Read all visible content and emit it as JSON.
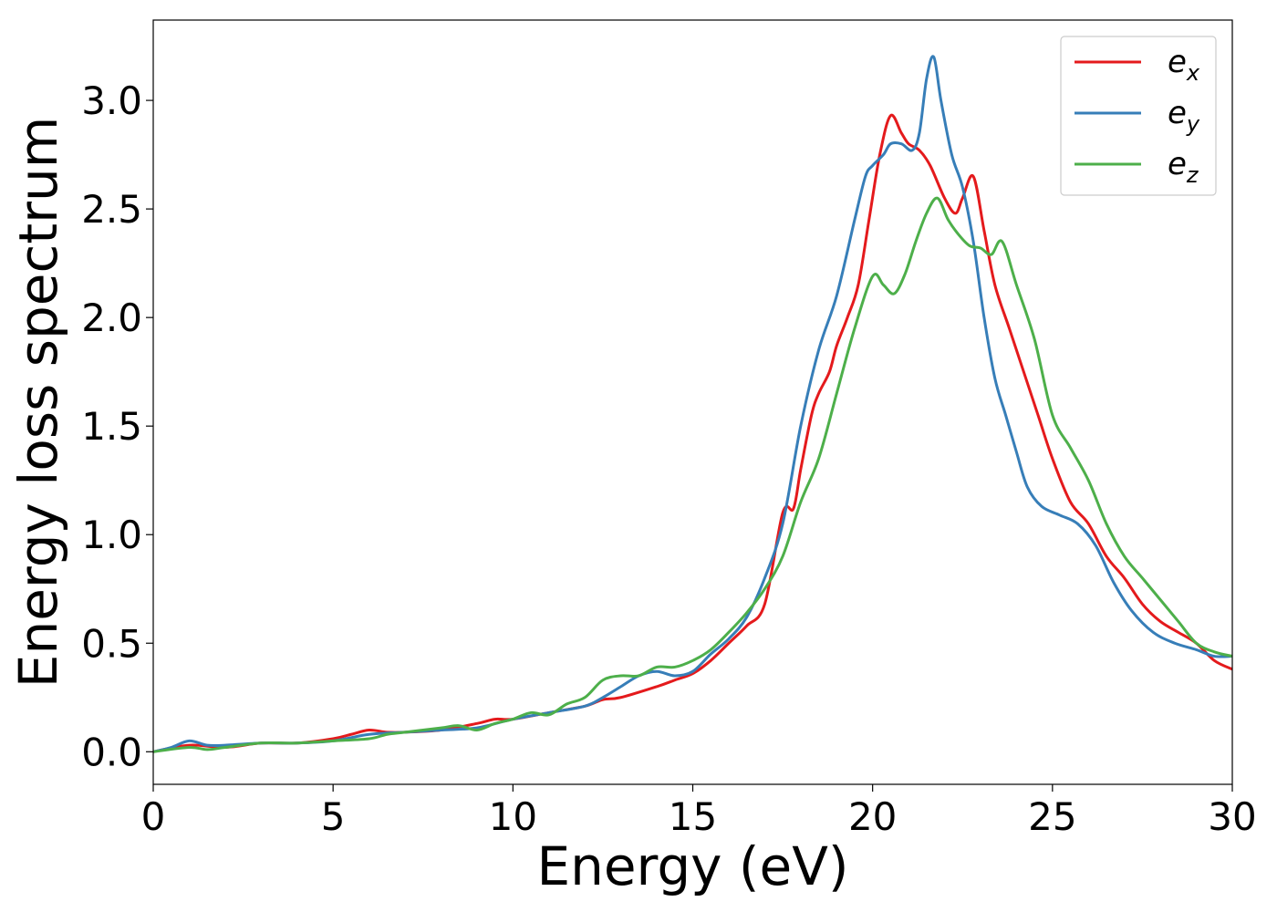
{
  "chart_data": {
    "type": "line",
    "title": "",
    "xlabel": "Energy (eV)",
    "ylabel": "Energy loss spectrum",
    "xlim": [
      0,
      30
    ],
    "ylim": [
      -0.15,
      3.37
    ],
    "xticks": [
      0,
      5,
      10,
      15,
      20,
      25,
      30
    ],
    "xtick_labels": [
      "0",
      "5",
      "10",
      "15",
      "20",
      "25",
      "30"
    ],
    "yticks": [
      0.0,
      0.5,
      1.0,
      1.5,
      2.0,
      2.5,
      3.0
    ],
    "ytick_labels": [
      "0.0",
      "0.5",
      "1.0",
      "1.5",
      "2.0",
      "2.5",
      "3.0"
    ],
    "grid": false,
    "legend_position": "top-right",
    "series": [
      {
        "name": "e",
        "subscript": "x",
        "color": "#e41a1c",
        "x": [
          0,
          1,
          2,
          3,
          4,
          5,
          5.5,
          6,
          6.5,
          7,
          8,
          9,
          9.5,
          10,
          11,
          12,
          12.5,
          13,
          14,
          14.5,
          15,
          15.5,
          16,
          16.5,
          17,
          17.5,
          17.8,
          18,
          18.3,
          18.5,
          18.8,
          19,
          19.3,
          19.6,
          19.9,
          20.2,
          20.5,
          20.8,
          21,
          21.3,
          21.6,
          22,
          22.3,
          22.5,
          22.8,
          23.1,
          23.4,
          23.8,
          24.2,
          24.6,
          25,
          25.5,
          26,
          26.5,
          27,
          27.5,
          28,
          28.5,
          29,
          29.5,
          30
        ],
        "y": [
          0.0,
          0.03,
          0.02,
          0.04,
          0.04,
          0.06,
          0.08,
          0.1,
          0.09,
          0.09,
          0.1,
          0.13,
          0.15,
          0.15,
          0.18,
          0.21,
          0.24,
          0.25,
          0.3,
          0.33,
          0.36,
          0.42,
          0.5,
          0.58,
          0.68,
          1.1,
          1.12,
          1.3,
          1.55,
          1.65,
          1.75,
          1.87,
          2.0,
          2.15,
          2.45,
          2.75,
          2.93,
          2.85,
          2.8,
          2.77,
          2.7,
          2.55,
          2.48,
          2.55,
          2.65,
          2.4,
          2.15,
          1.95,
          1.75,
          1.55,
          1.35,
          1.15,
          1.05,
          0.9,
          0.8,
          0.68,
          0.6,
          0.55,
          0.5,
          0.42,
          0.38
        ]
      },
      {
        "name": "e",
        "subscript": "y",
        "color": "#377eb8",
        "x": [
          0,
          0.5,
          1,
          1.5,
          2,
          3,
          4,
          5,
          6,
          7,
          8,
          9,
          10,
          11,
          12,
          12.5,
          13,
          13.5,
          14,
          14.5,
          15,
          15.5,
          16,
          16.5,
          17,
          17.5,
          18,
          18.5,
          19,
          19.5,
          19.8,
          20,
          20.3,
          20.5,
          20.8,
          21.1,
          21.3,
          21.5,
          21.7,
          21.9,
          22.2,
          22.5,
          22.8,
          23.1,
          23.4,
          23.7,
          24,
          24.3,
          24.7,
          25.2,
          25.7,
          26.2,
          26.7,
          27.2,
          27.8,
          28.4,
          29,
          29.5,
          30
        ],
        "y": [
          0.0,
          0.02,
          0.05,
          0.03,
          0.03,
          0.04,
          0.04,
          0.05,
          0.08,
          0.09,
          0.1,
          0.11,
          0.15,
          0.18,
          0.21,
          0.25,
          0.3,
          0.35,
          0.37,
          0.35,
          0.37,
          0.45,
          0.52,
          0.62,
          0.8,
          1.05,
          1.5,
          1.85,
          2.1,
          2.45,
          2.65,
          2.7,
          2.75,
          2.8,
          2.8,
          2.77,
          2.85,
          3.1,
          3.2,
          3.0,
          2.75,
          2.6,
          2.35,
          2.0,
          1.72,
          1.55,
          1.38,
          1.22,
          1.13,
          1.09,
          1.05,
          0.95,
          0.78,
          0.65,
          0.55,
          0.5,
          0.47,
          0.44,
          0.44
        ]
      },
      {
        "name": "e",
        "subscript": "z",
        "color": "#4daf4a",
        "x": [
          0,
          1,
          1.5,
          2,
          3,
          4,
          5,
          6,
          6.5,
          7,
          8,
          8.5,
          9,
          9.5,
          10,
          10.5,
          11,
          11.5,
          12,
          12.5,
          13,
          13.5,
          14,
          14.5,
          15,
          15.5,
          16,
          16.5,
          17,
          17.5,
          18,
          18.5,
          19,
          19.5,
          20,
          20.3,
          20.6,
          20.9,
          21.2,
          21.5,
          21.8,
          22.1,
          22.4,
          22.7,
          23,
          23.3,
          23.6,
          24,
          24.5,
          25,
          25.5,
          26,
          26.5,
          27,
          27.5,
          28,
          28.5,
          29,
          29.5,
          30
        ],
        "y": [
          0.0,
          0.02,
          0.01,
          0.02,
          0.04,
          0.04,
          0.05,
          0.06,
          0.08,
          0.09,
          0.11,
          0.12,
          0.1,
          0.13,
          0.15,
          0.18,
          0.17,
          0.22,
          0.25,
          0.33,
          0.35,
          0.35,
          0.39,
          0.39,
          0.42,
          0.47,
          0.55,
          0.64,
          0.75,
          0.9,
          1.15,
          1.35,
          1.65,
          1.95,
          2.19,
          2.15,
          2.11,
          2.2,
          2.35,
          2.48,
          2.55,
          2.45,
          2.38,
          2.33,
          2.32,
          2.29,
          2.35,
          2.15,
          1.9,
          1.55,
          1.4,
          1.25,
          1.05,
          0.9,
          0.8,
          0.7,
          0.6,
          0.5,
          0.46,
          0.44
        ]
      }
    ]
  }
}
